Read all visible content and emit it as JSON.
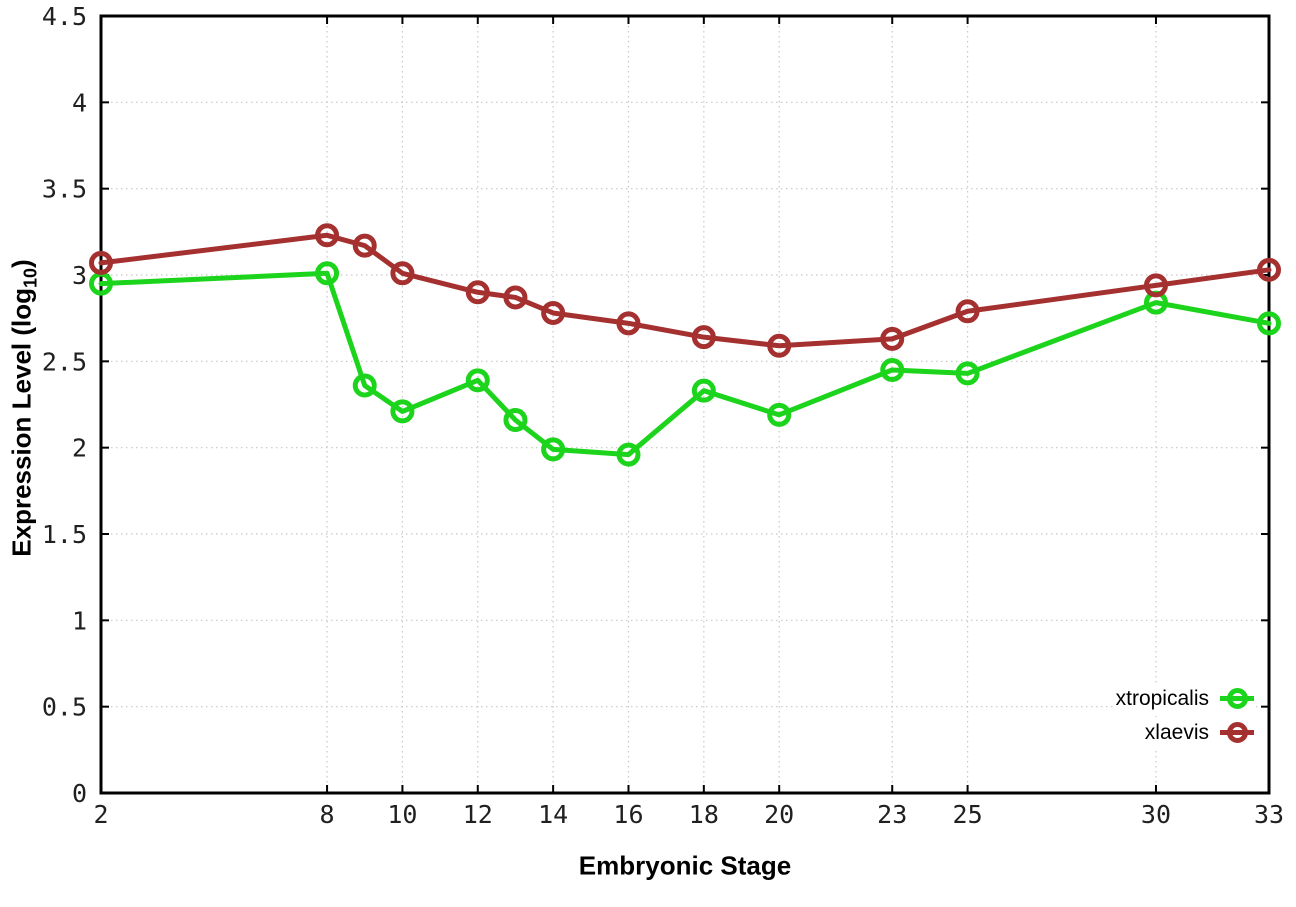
{
  "chart_data": {
    "type": "line",
    "title": "",
    "xlabel": "Embryonic Stage",
    "ylabel_prefix": "Expression Level (log",
    "ylabel_sub": "10",
    "ylabel_suffix": ")",
    "x": [
      2,
      8,
      9,
      10,
      12,
      13,
      14,
      16,
      18,
      20,
      23,
      25,
      30,
      33
    ],
    "series": [
      {
        "name": "xtropicalis",
        "color": "#1bd41b",
        "values": [
          2.95,
          3.01,
          2.36,
          2.21,
          2.39,
          2.16,
          1.99,
          1.96,
          2.33,
          2.19,
          2.45,
          2.43,
          2.84,
          2.72
        ]
      },
      {
        "name": "xlaevis",
        "color": "#a53030",
        "values": [
          3.07,
          3.23,
          3.17,
          3.01,
          2.9,
          2.87,
          2.78,
          2.72,
          2.64,
          2.59,
          2.63,
          2.79,
          2.94,
          3.03
        ]
      }
    ],
    "xticks": [
      2,
      8,
      10,
      12,
      14,
      16,
      18,
      20,
      23,
      25,
      30,
      33
    ],
    "yticks": [
      0,
      0.5,
      1,
      1.5,
      2,
      2.5,
      3,
      3.5,
      4,
      4.5
    ],
    "xlim": [
      2,
      33
    ],
    "ylim": [
      0,
      4.5
    ],
    "grid": true,
    "grid_color": "#c8c8c8",
    "border_color": "#000000",
    "background_color": "#ffffff",
    "tick_label_color": "#202020",
    "legend_position": "bottom-right",
    "legend_entries": [
      "xtropicalis",
      "xlaevis"
    ]
  }
}
